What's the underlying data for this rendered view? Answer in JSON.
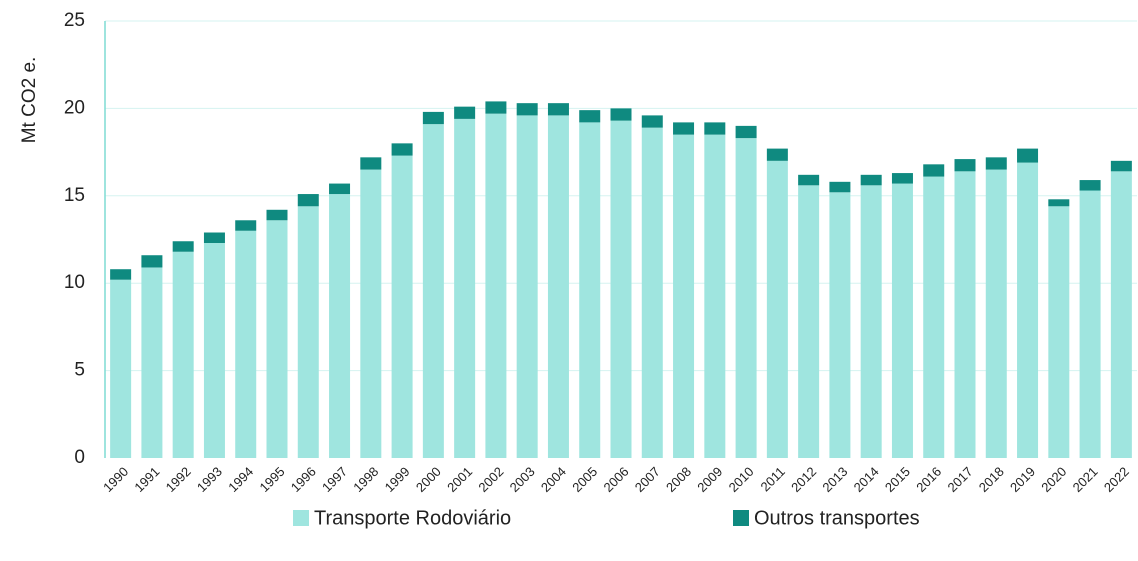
{
  "chart_data": {
    "type": "stacked_bar",
    "y_label": "Mt CO2 e.",
    "categories": [
      "1990",
      "1991",
      "1992",
      "1993",
      "1994",
      "1995",
      "1996",
      "1997",
      "1998",
      "1999",
      "2000",
      "2001",
      "2002",
      "2003",
      "2004",
      "2005",
      "2006",
      "2007",
      "2008",
      "2009",
      "2010",
      "2011",
      "2012",
      "2013",
      "2014",
      "2015",
      "2016",
      "2017",
      "2018",
      "2019",
      "2020",
      "2021",
      "2022"
    ],
    "series": [
      {
        "name": "Transporte Rodoviário",
        "color": "#9fe5df",
        "values": [
          10.2,
          10.9,
          11.8,
          12.3,
          13.0,
          13.6,
          14.4,
          15.1,
          16.5,
          17.3,
          19.1,
          19.4,
          19.7,
          19.6,
          19.6,
          19.2,
          19.3,
          18.9,
          18.5,
          18.5,
          18.3,
          17.0,
          15.6,
          15.2,
          15.6,
          15.7,
          16.1,
          16.4,
          16.5,
          16.9,
          14.4,
          15.3,
          16.4
        ]
      },
      {
        "name": "Outros transportes",
        "color": "#0f8a80",
        "values": [
          0.6,
          0.7,
          0.6,
          0.6,
          0.6,
          0.6,
          0.7,
          0.6,
          0.7,
          0.7,
          0.7,
          0.7,
          0.7,
          0.7,
          0.7,
          0.7,
          0.7,
          0.7,
          0.7,
          0.7,
          0.7,
          0.7,
          0.6,
          0.6,
          0.6,
          0.6,
          0.7,
          0.7,
          0.7,
          0.8,
          0.4,
          0.6,
          0.6
        ]
      }
    ],
    "ylim": [
      0,
      25
    ],
    "yticks": [
      0,
      5,
      10,
      15,
      20,
      25
    ],
    "grid": true
  }
}
